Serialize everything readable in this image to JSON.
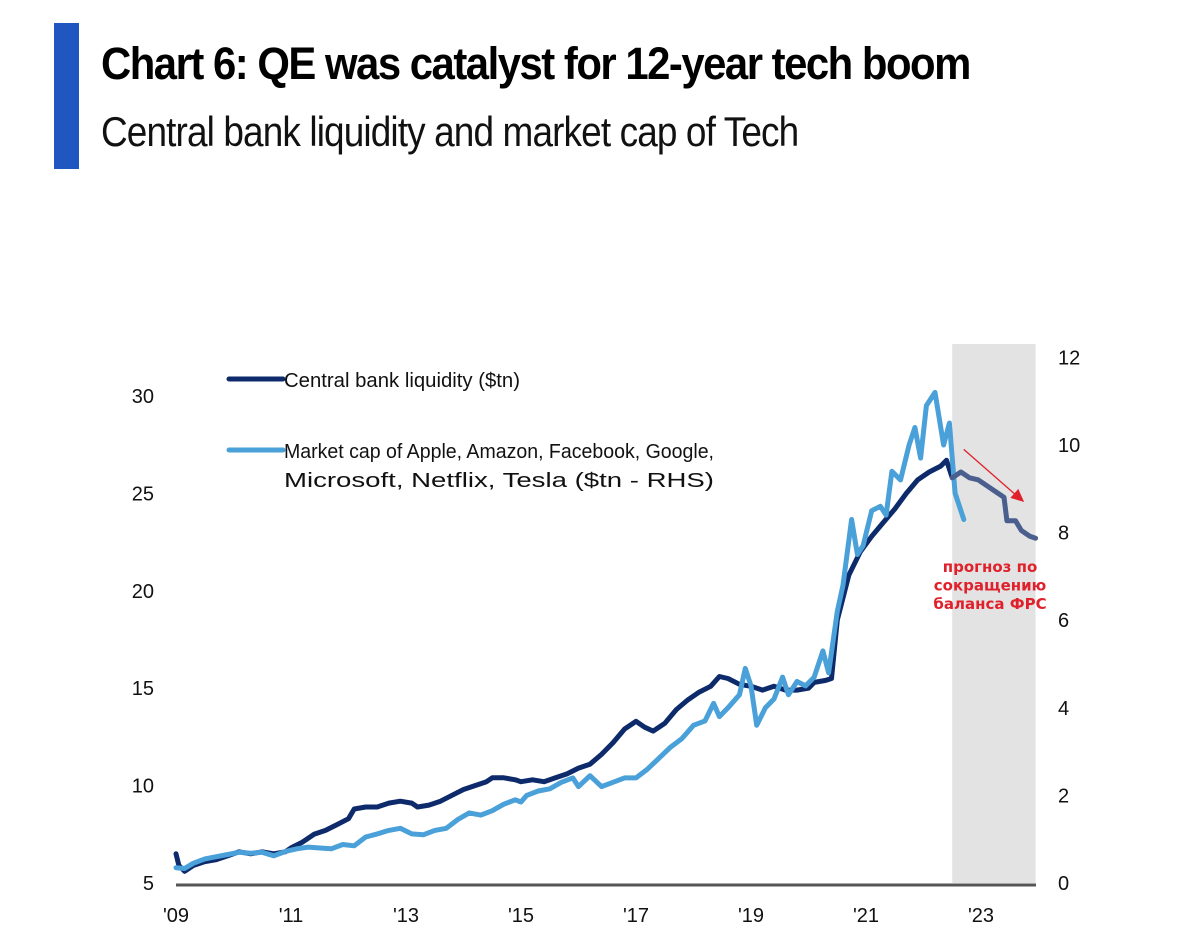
{
  "header": {
    "title": "Chart 6: QE was catalyst for 12-year tech boom",
    "subtitle": "Central bank liquidity and market cap of Tech",
    "accent_color": "#1f56c0"
  },
  "chart_data": {
    "type": "line",
    "title": "Chart 6: QE was catalyst for 12-year tech boom",
    "subtitle": "Central bank liquidity and market cap of Tech",
    "xlabel": "",
    "ylabel_left": "Central bank liquidity ($tn)",
    "ylabel_right": "Market cap ($tn - RHS)",
    "x_range": [
      2009.0,
      2023.95
    ],
    "x_ticks": [
      {
        "value": 2009,
        "label": "'09"
      },
      {
        "value": 2011,
        "label": "'11"
      },
      {
        "value": 2013,
        "label": "'13"
      },
      {
        "value": 2015,
        "label": "'15"
      },
      {
        "value": 2017,
        "label": "'17"
      },
      {
        "value": 2019,
        "label": "'19"
      },
      {
        "value": 2021,
        "label": "'21"
      },
      {
        "value": 2023,
        "label": "'23"
      }
    ],
    "y_left": {
      "range": [
        5,
        32
      ],
      "ticks": [
        5,
        10,
        15,
        20,
        25,
        30
      ]
    },
    "y_right": {
      "range": [
        0,
        12
      ],
      "ticks": [
        0,
        2,
        4,
        6,
        8,
        10,
        12
      ]
    },
    "grid": false,
    "legend": {
      "placement": "top-left",
      "entries": [
        {
          "label_lines": [
            "Central bank liquidity ($tn)"
          ],
          "color": "#0d2a6b"
        },
        {
          "label_lines": [
            "Market cap of Apple, Amazon, Facebook, Google,",
            "Microsoft, Netflix, Tesla ($tn - RHS)"
          ],
          "color": "#4aa0d8"
        }
      ]
    },
    "shaded_region": {
      "x_start": 2022.5,
      "x_end": 2023.95,
      "color": "#e3e3e3"
    },
    "annotation": {
      "lines": [
        "прогноз по",
        "сокращению",
        "баланса ФРС"
      ],
      "color": "#e0202a",
      "arrow": {
        "from": [
          2022.7,
          9.9
        ],
        "to": [
          2023.75,
          8.7
        ],
        "axis": "right"
      }
    },
    "series": [
      {
        "name": "Central bank liquidity ($tn)",
        "axis": "left",
        "color": "#0d2a6b",
        "points": [
          [
            2009.0,
            6.5
          ],
          [
            2009.05,
            5.9
          ],
          [
            2009.15,
            5.6
          ],
          [
            2009.3,
            5.9
          ],
          [
            2009.5,
            6.1
          ],
          [
            2009.7,
            6.2
          ],
          [
            2009.9,
            6.4
          ],
          [
            2010.1,
            6.6
          ],
          [
            2010.3,
            6.5
          ],
          [
            2010.5,
            6.6
          ],
          [
            2010.7,
            6.5
          ],
          [
            2010.9,
            6.6
          ],
          [
            2011.0,
            6.8
          ],
          [
            2011.2,
            7.1
          ],
          [
            2011.4,
            7.5
          ],
          [
            2011.6,
            7.7
          ],
          [
            2011.8,
            8.0
          ],
          [
            2012.0,
            8.3
          ],
          [
            2012.1,
            8.8
          ],
          [
            2012.3,
            8.9
          ],
          [
            2012.5,
            8.9
          ],
          [
            2012.7,
            9.1
          ],
          [
            2012.9,
            9.2
          ],
          [
            2013.1,
            9.1
          ],
          [
            2013.2,
            8.9
          ],
          [
            2013.4,
            9.0
          ],
          [
            2013.6,
            9.2
          ],
          [
            2013.8,
            9.5
          ],
          [
            2014.0,
            9.8
          ],
          [
            2014.2,
            10.0
          ],
          [
            2014.4,
            10.2
          ],
          [
            2014.5,
            10.4
          ],
          [
            2014.7,
            10.4
          ],
          [
            2014.9,
            10.3
          ],
          [
            2015.0,
            10.2
          ],
          [
            2015.2,
            10.3
          ],
          [
            2015.4,
            10.2
          ],
          [
            2015.6,
            10.4
          ],
          [
            2015.8,
            10.6
          ],
          [
            2016.0,
            10.9
          ],
          [
            2016.2,
            11.1
          ],
          [
            2016.4,
            11.6
          ],
          [
            2016.6,
            12.2
          ],
          [
            2016.8,
            12.9
          ],
          [
            2017.0,
            13.3
          ],
          [
            2017.15,
            13.0
          ],
          [
            2017.3,
            12.8
          ],
          [
            2017.5,
            13.2
          ],
          [
            2017.7,
            13.9
          ],
          [
            2017.9,
            14.4
          ],
          [
            2018.1,
            14.8
          ],
          [
            2018.3,
            15.1
          ],
          [
            2018.45,
            15.6
          ],
          [
            2018.6,
            15.5
          ],
          [
            2018.8,
            15.2
          ],
          [
            2019.0,
            15.1
          ],
          [
            2019.2,
            14.9
          ],
          [
            2019.4,
            15.1
          ],
          [
            2019.6,
            14.9
          ],
          [
            2019.8,
            14.9
          ],
          [
            2020.0,
            15.0
          ],
          [
            2020.1,
            15.3
          ],
          [
            2020.3,
            15.4
          ],
          [
            2020.4,
            15.5
          ],
          [
            2020.5,
            18.5
          ],
          [
            2020.7,
            20.8
          ],
          [
            2020.9,
            22.0
          ],
          [
            2021.1,
            22.8
          ],
          [
            2021.3,
            23.5
          ],
          [
            2021.5,
            24.2
          ],
          [
            2021.7,
            25.0
          ],
          [
            2021.9,
            25.7
          ],
          [
            2022.1,
            26.1
          ],
          [
            2022.3,
            26.4
          ],
          [
            2022.4,
            26.7
          ],
          [
            2022.5,
            25.8
          ]
        ]
      },
      {
        "name": "Market cap of Apple, Amazon, Facebook, Google, Microsoft, Netflix, Tesla ($tn - RHS)",
        "axis": "right",
        "color": "#4aa0d8",
        "points": [
          [
            2009.0,
            0.35
          ],
          [
            2009.15,
            0.33
          ],
          [
            2009.3,
            0.45
          ],
          [
            2009.5,
            0.55
          ],
          [
            2009.7,
            0.6
          ],
          [
            2009.9,
            0.65
          ],
          [
            2010.1,
            0.7
          ],
          [
            2010.3,
            0.68
          ],
          [
            2010.5,
            0.7
          ],
          [
            2010.7,
            0.62
          ],
          [
            2010.9,
            0.72
          ],
          [
            2011.1,
            0.78
          ],
          [
            2011.3,
            0.82
          ],
          [
            2011.5,
            0.8
          ],
          [
            2011.7,
            0.78
          ],
          [
            2011.9,
            0.88
          ],
          [
            2012.1,
            0.85
          ],
          [
            2012.3,
            1.05
          ],
          [
            2012.5,
            1.12
          ],
          [
            2012.7,
            1.2
          ],
          [
            2012.9,
            1.25
          ],
          [
            2013.1,
            1.12
          ],
          [
            2013.3,
            1.1
          ],
          [
            2013.5,
            1.2
          ],
          [
            2013.7,
            1.25
          ],
          [
            2013.9,
            1.45
          ],
          [
            2014.1,
            1.6
          ],
          [
            2014.3,
            1.55
          ],
          [
            2014.5,
            1.65
          ],
          [
            2014.7,
            1.8
          ],
          [
            2014.9,
            1.9
          ],
          [
            2015.0,
            1.85
          ],
          [
            2015.1,
            2.0
          ],
          [
            2015.3,
            2.1
          ],
          [
            2015.5,
            2.15
          ],
          [
            2015.7,
            2.3
          ],
          [
            2015.9,
            2.4
          ],
          [
            2016.0,
            2.2
          ],
          [
            2016.2,
            2.45
          ],
          [
            2016.4,
            2.2
          ],
          [
            2016.6,
            2.3
          ],
          [
            2016.8,
            2.4
          ],
          [
            2017.0,
            2.4
          ],
          [
            2017.2,
            2.6
          ],
          [
            2017.4,
            2.85
          ],
          [
            2017.6,
            3.1
          ],
          [
            2017.8,
            3.3
          ],
          [
            2018.0,
            3.6
          ],
          [
            2018.2,
            3.7
          ],
          [
            2018.35,
            4.1
          ],
          [
            2018.45,
            3.8
          ],
          [
            2018.6,
            4.0
          ],
          [
            2018.8,
            4.3
          ],
          [
            2018.9,
            4.9
          ],
          [
            2019.0,
            4.5
          ],
          [
            2019.1,
            3.6
          ],
          [
            2019.25,
            4.0
          ],
          [
            2019.4,
            4.2
          ],
          [
            2019.55,
            4.7
          ],
          [
            2019.65,
            4.3
          ],
          [
            2019.8,
            4.6
          ],
          [
            2019.95,
            4.5
          ],
          [
            2020.1,
            4.7
          ],
          [
            2020.25,
            5.3
          ],
          [
            2020.35,
            4.8
          ],
          [
            2020.5,
            6.2
          ],
          [
            2020.6,
            6.8
          ],
          [
            2020.75,
            8.3
          ],
          [
            2020.85,
            7.5
          ],
          [
            2020.95,
            7.7
          ],
          [
            2021.1,
            8.5
          ],
          [
            2021.25,
            8.6
          ],
          [
            2021.35,
            8.4
          ],
          [
            2021.45,
            9.4
          ],
          [
            2021.6,
            9.2
          ],
          [
            2021.75,
            10.0
          ],
          [
            2021.85,
            10.4
          ],
          [
            2021.95,
            9.7
          ],
          [
            2022.05,
            10.9
          ],
          [
            2022.2,
            11.2
          ],
          [
            2022.35,
            10.0
          ],
          [
            2022.45,
            10.5
          ],
          [
            2022.55,
            8.9
          ],
          [
            2022.7,
            8.3
          ]
        ]
      },
      {
        "name": "Forecast: Fed balance sheet reduction",
        "axis": "left",
        "color": "#4a5f8e",
        "points": [
          [
            2022.5,
            25.8
          ],
          [
            2022.65,
            26.1
          ],
          [
            2022.8,
            25.8
          ],
          [
            2022.95,
            25.7
          ],
          [
            2023.05,
            25.5
          ],
          [
            2023.15,
            25.3
          ],
          [
            2023.25,
            25.1
          ],
          [
            2023.4,
            24.8
          ],
          [
            2023.45,
            23.6
          ],
          [
            2023.6,
            23.6
          ],
          [
            2023.7,
            23.1
          ],
          [
            2023.85,
            22.8
          ],
          [
            2023.95,
            22.7
          ]
        ]
      }
    ]
  }
}
